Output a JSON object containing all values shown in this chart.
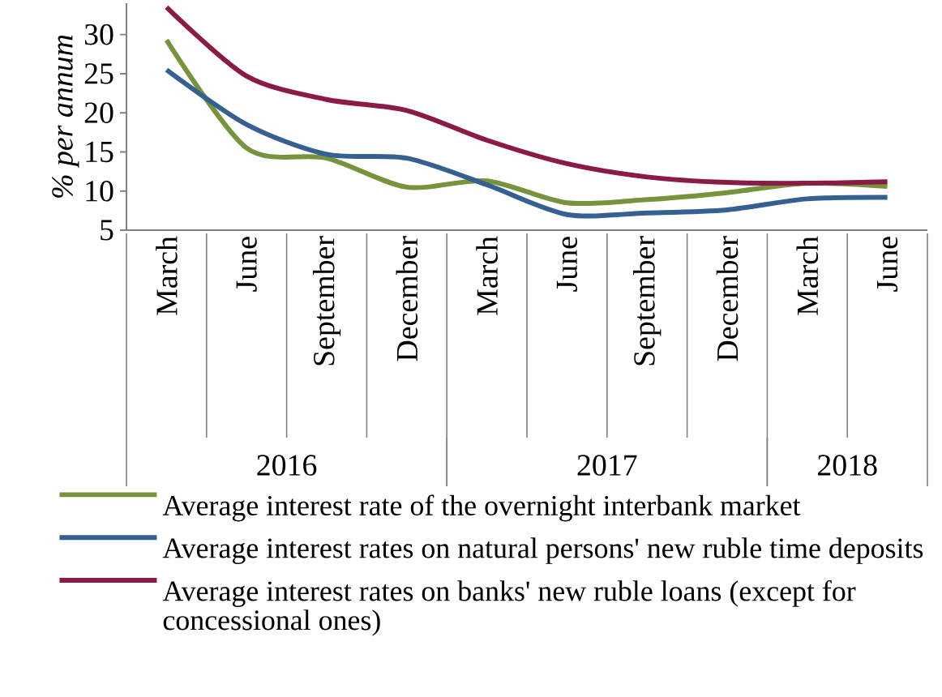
{
  "chart_data": {
    "type": "line",
    "ylabel": "% per annum",
    "categories": [
      "March",
      "June",
      "September",
      "December",
      "March",
      "June",
      "September",
      "December",
      "March",
      "June"
    ],
    "annotations": [
      "2016",
      "2017",
      "2018"
    ],
    "series": [
      {
        "name": "Average interest rate of the overnight interbank market",
        "color": "#77933c",
        "values": [
          29.3,
          15.5,
          14.2,
          10.5,
          11.3,
          8.5,
          8.9,
          9.8,
          11.0,
          10.6
        ]
      },
      {
        "name": "Average interest rates on natural persons' new ruble time deposits",
        "color": "#376092",
        "values": [
          25.5,
          18.5,
          14.7,
          14.2,
          10.8,
          7.0,
          7.2,
          7.6,
          9.0,
          9.2
        ]
      },
      {
        "name": "Average interest rates on banks' new ruble loans (except for concessional ones)",
        "color": "#8b1a47",
        "values": [
          33.5,
          24.7,
          21.7,
          20.3,
          16.5,
          13.5,
          11.8,
          11.1,
          11.0,
          11.2
        ]
      }
    ],
    "ylim": [
      5,
      34
    ],
    "yticks": [
      5,
      10,
      15,
      20,
      25,
      30
    ],
    "grid": false,
    "legend": "bottom",
    "marker": "none",
    "line_style": "solid"
  }
}
